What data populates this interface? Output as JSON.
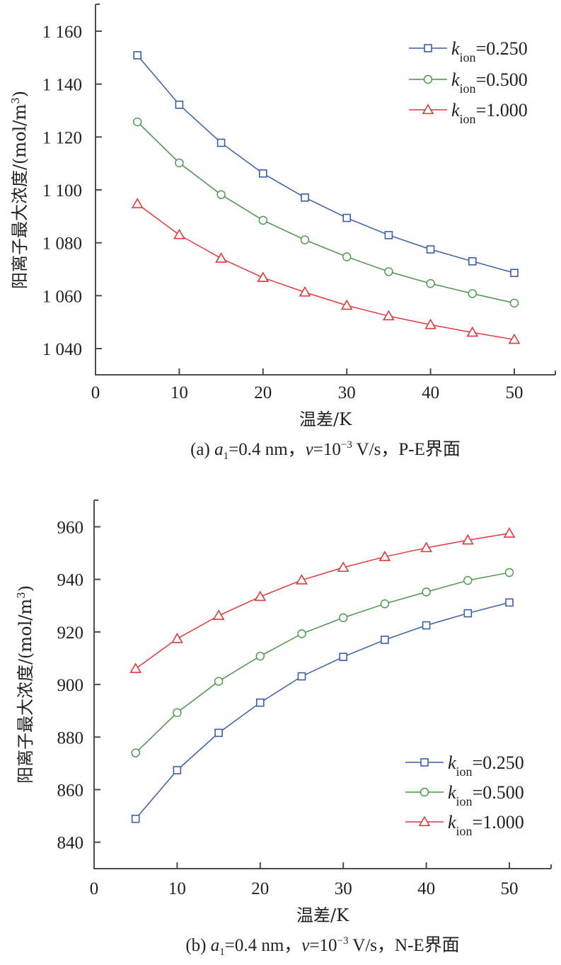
{
  "chart_data": [
    {
      "type": "line",
      "panel": "a",
      "title": "",
      "caption": {
        "prefix": "(a) ",
        "a_symbol": "a",
        "a_sub": "1",
        "a_value": "=0.4 nm，",
        "v_symbol": "v",
        "v_value": "=10",
        "v_exp": "−3",
        "v_unit": " V/s，P-E界面"
      },
      "xlabel": "温差/K",
      "ylabel": "阳离子最大浓度/(mol/m",
      "ylabel_sup": "3",
      "ylabel_close": ")",
      "xlim": [
        0,
        55
      ],
      "ylim": [
        1030,
        1170
      ],
      "xticks": [
        0,
        10,
        20,
        30,
        40,
        50
      ],
      "xtick_labels": [
        "0",
        "10",
        "20",
        "30",
        "40",
        "50"
      ],
      "yticks": [
        1040,
        1060,
        1080,
        1100,
        1120,
        1140,
        1160
      ],
      "ytick_labels": [
        "1 040",
        "1 060",
        "1 080",
        "1 100",
        "1 120",
        "1 140",
        "1 160"
      ],
      "grid": false,
      "legend_position": "top-right",
      "x": [
        5,
        10,
        15,
        20,
        25,
        30,
        35,
        40,
        45,
        50
      ],
      "series": [
        {
          "name": "k_ion=0.250",
          "label_symbol": "k",
          "label_sub": "ion",
          "label_value": "=0.250",
          "color": "#3a5ea8",
          "marker": "square",
          "values": [
            1150.9,
            1132.2,
            1117.8,
            1106.2,
            1097.1,
            1089.4,
            1082.9,
            1077.5,
            1073.0,
            1068.6
          ]
        },
        {
          "name": "k_ion=0.500",
          "label_symbol": "k",
          "label_sub": "ion",
          "label_value": "=0.500",
          "color": "#4a9448",
          "marker": "circle",
          "values": [
            1125.7,
            1110.2,
            1098.2,
            1088.5,
            1081.1,
            1074.7,
            1069.1,
            1064.6,
            1060.8,
            1057.2
          ]
        },
        {
          "name": "k_ion=1.000",
          "label_symbol": "k",
          "label_sub": "ion",
          "label_value": "=1.000",
          "color": "#e0393e",
          "marker": "triangle",
          "values": [
            1094.7,
            1083.0,
            1074.1,
            1066.8,
            1061.3,
            1056.3,
            1052.3,
            1049.0,
            1046.1,
            1043.4
          ]
        }
      ]
    },
    {
      "type": "line",
      "panel": "b",
      "title": "",
      "caption": {
        "prefix": "(b) ",
        "a_symbol": "a",
        "a_sub": "1",
        "a_value": "=0.4 nm，",
        "v_symbol": "v",
        "v_value": "=10",
        "v_exp": "−3",
        "v_unit": " V/s，N-E界面"
      },
      "xlabel": "温差/K",
      "ylabel": "阳离子最大浓度/(mol/m",
      "ylabel_sup": "3",
      "ylabel_close": ")",
      "xlim": [
        0,
        55
      ],
      "ylim": [
        830,
        970
      ],
      "xticks": [
        0,
        10,
        20,
        30,
        40,
        50
      ],
      "xtick_labels": [
        "0",
        "10",
        "20",
        "30",
        "40",
        "50"
      ],
      "yticks": [
        840,
        860,
        880,
        900,
        920,
        940,
        960
      ],
      "ytick_labels": [
        "840",
        "860",
        "880",
        "900",
        "920",
        "940",
        "960"
      ],
      "grid": false,
      "legend_position": "bottom-right",
      "x": [
        5,
        10,
        15,
        20,
        25,
        30,
        35,
        40,
        45,
        50
      ],
      "series": [
        {
          "name": "k_ion=0.250",
          "label_symbol": "k",
          "label_sub": "ion",
          "label_value": "=0.250",
          "color": "#3a5ea8",
          "marker": "square",
          "values": [
            848.9,
            867.4,
            881.6,
            893.1,
            903.1,
            910.5,
            917.0,
            922.5,
            927.1,
            931.2
          ]
        },
        {
          "name": "k_ion=0.500",
          "label_symbol": "k",
          "label_sub": "ion",
          "label_value": "=0.500",
          "color": "#4a9448",
          "marker": "circle",
          "values": [
            874.0,
            889.3,
            901.2,
            910.8,
            919.3,
            925.4,
            930.7,
            935.2,
            939.6,
            942.6
          ]
        },
        {
          "name": "k_ion=1.000",
          "label_symbol": "k",
          "label_sub": "ion",
          "label_value": "=1.000",
          "color": "#e0393e",
          "marker": "triangle",
          "values": [
            906.0,
            917.4,
            926.2,
            933.4,
            939.7,
            944.5,
            948.6,
            952.0,
            954.9,
            957.5
          ]
        }
      ]
    }
  ]
}
